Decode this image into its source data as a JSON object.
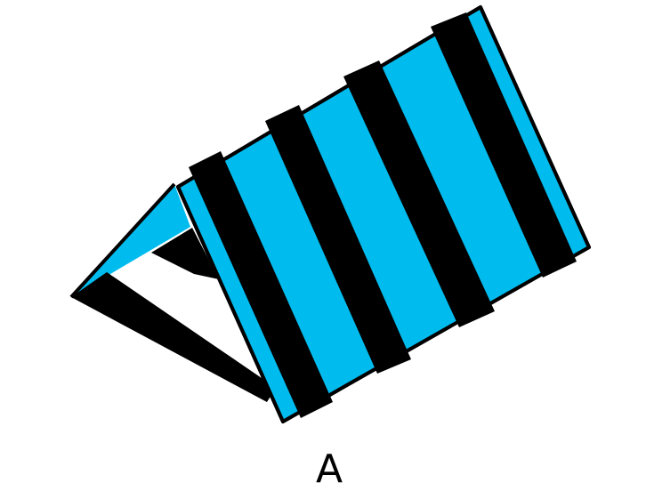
{
  "figure": {
    "caption": "A",
    "colors": {
      "ramp_fill": "#00BCEE",
      "stripe": "#000000",
      "outline": "#000000",
      "background": "#FFFFFF"
    }
  }
}
